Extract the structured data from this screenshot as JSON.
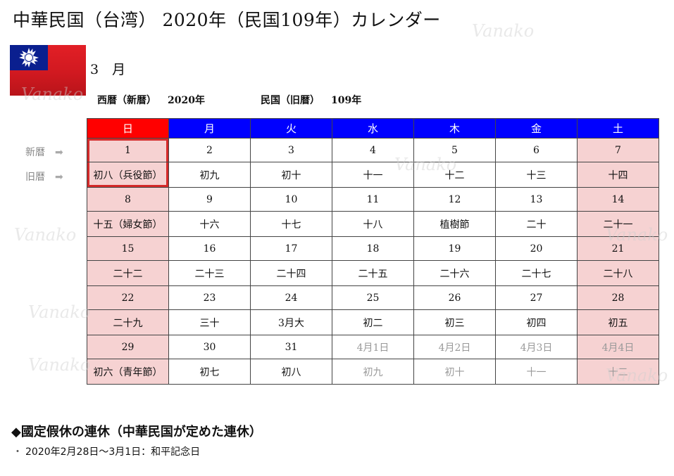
{
  "title": "中華民国（台湾） 2020年（民国109年）カレンダー",
  "month": "3　月",
  "era": {
    "western_label": "西暦（新暦）",
    "western_value": "2020年",
    "minguo_label": "民国（旧暦）",
    "minguo_value": "109年"
  },
  "row_labels": {
    "new": "新暦",
    "old": "旧暦",
    "arrow": "➡"
  },
  "weekdays": [
    "日",
    "月",
    "火",
    "水",
    "木",
    "金",
    "土"
  ],
  "weeks": [
    {
      "new": [
        "1",
        "2",
        "3",
        "4",
        "5",
        "6",
        "7"
      ],
      "old": [
        "初八（兵役節）",
        "初九",
        "初十",
        "十一",
        "十二",
        "十三",
        "十四"
      ]
    },
    {
      "new": [
        "8",
        "9",
        "10",
        "11",
        "12",
        "13",
        "14"
      ],
      "old": [
        "十五（婦女節）",
        "十六",
        "十七",
        "十八",
        "植樹節",
        "二十",
        "二十一"
      ]
    },
    {
      "new": [
        "15",
        "16",
        "17",
        "18",
        "19",
        "20",
        "21"
      ],
      "old": [
        "二十二",
        "二十三",
        "二十四",
        "二十五",
        "二十六",
        "二十七",
        "二十八"
      ]
    },
    {
      "new": [
        "22",
        "23",
        "24",
        "25",
        "26",
        "27",
        "28"
      ],
      "old": [
        "二十九",
        "三十",
        "3月大",
        "初二",
        "初三",
        "初四",
        "初五"
      ]
    },
    {
      "new": [
        "29",
        "30",
        "31",
        "4月1日",
        "4月2日",
        "4月3日",
        "4月4日"
      ],
      "old": [
        "初六（青年節）",
        "初七",
        "初八",
        "初九",
        "初十",
        "十一",
        "十二"
      ]
    }
  ],
  "holidays_heading": "◆國定假休の連休（中華民国が定めた連休）",
  "holidays": [
    "2020年2月28日～3月1日：和平記念日"
  ],
  "watermark": "Vanako",
  "colors": {
    "header_blue": "#0000ff",
    "header_red": "#ff0000",
    "holiday_pink": "#f6d2d2",
    "highlight_border": "#d42a2a"
  }
}
